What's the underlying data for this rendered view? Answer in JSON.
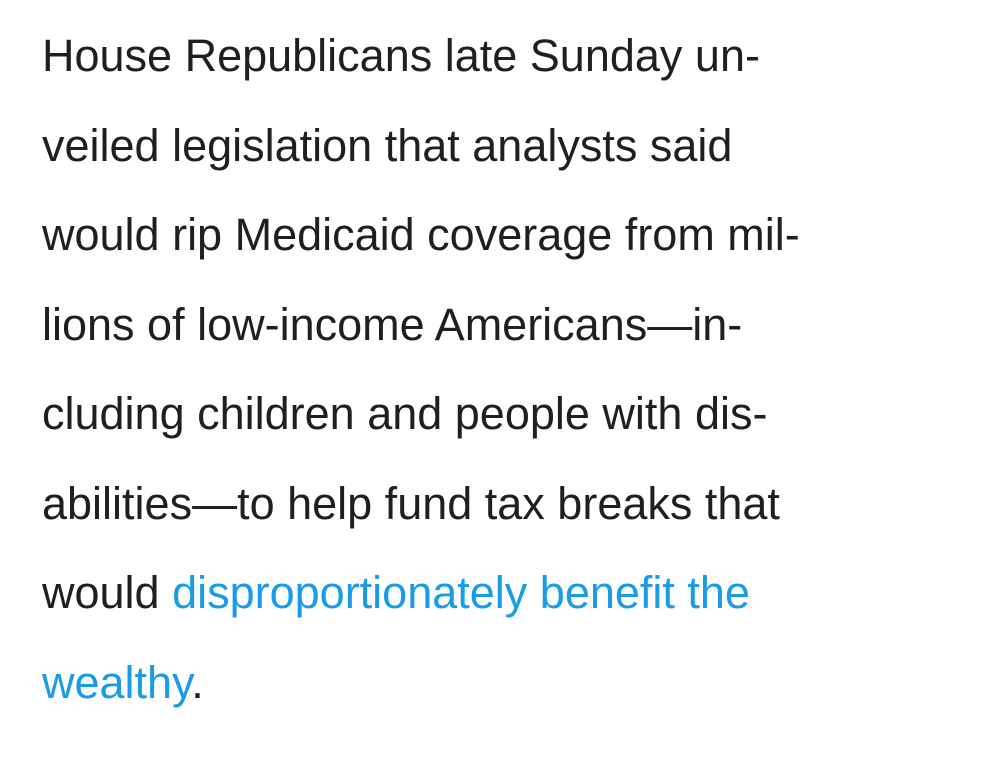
{
  "article": {
    "lines": [
      "House Republicans late Sunday un-",
      "veiled legislation that analysts said",
      "would rip Medicaid coverage from mil-",
      "lions of low-income Americans—in-",
      "cluding children and people with dis-",
      "abilities—to help fund tax breaks that"
    ],
    "line7_prefix": "would ",
    "link_part1": "disproportionately benefit the",
    "link_part2": "wealthy",
    "closing_punct": ".",
    "link_color": "#1a9be6",
    "text_color": "#1f1f1f"
  }
}
